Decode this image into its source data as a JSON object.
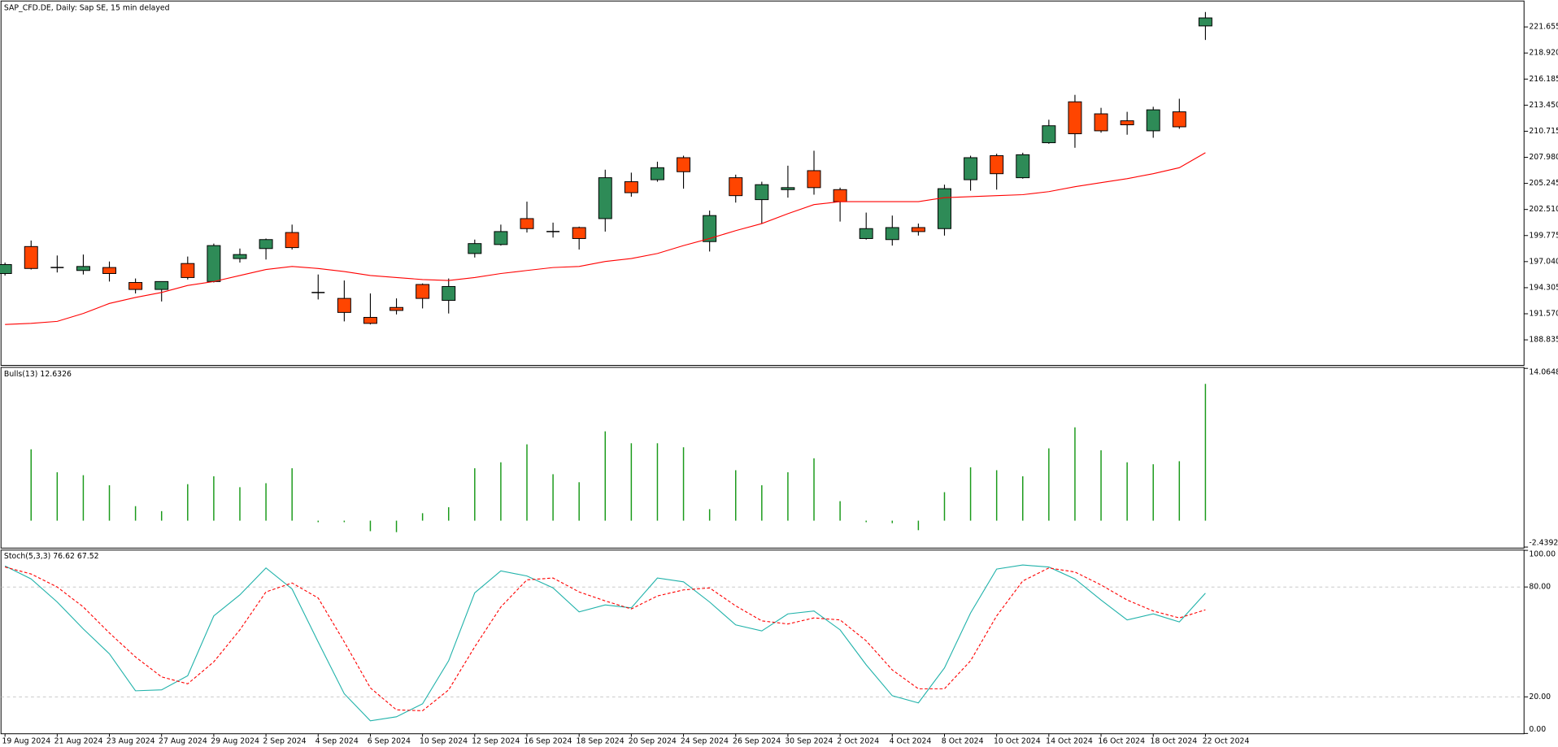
{
  "chart_data": [
    {
      "type": "candlestick",
      "title": "SAP_CFD.DE, Daily: Sap SE, 15 min delayed",
      "x": [
        "19 Aug 2024",
        null,
        "21 Aug 2024",
        null,
        "23 Aug 2024",
        null,
        "27 Aug 2024",
        null,
        "29 Aug 2024",
        null,
        "2 Sep 2024",
        null,
        "4 Sep 2024",
        null,
        "6 Sep 2024",
        null,
        "10 Sep 2024",
        null,
        "12 Sep 2024",
        null,
        "16 Sep 2024",
        null,
        "18 Sep 2024",
        null,
        "20 Sep 2024",
        null,
        "24 Sep 2024",
        null,
        "26 Sep 2024",
        null,
        "30 Sep 2024",
        null,
        "2 Oct 2024",
        null,
        "4 Oct 2024",
        null,
        "8 Oct 2024",
        null,
        "10 Oct 2024",
        null,
        "14 Oct 2024",
        null,
        "16 Oct 2024",
        null,
        "18 Oct 2024",
        null,
        "22 Oct 2024"
      ],
      "open": [
        195.79,
        198.62,
        196.42,
        196.11,
        196.42,
        194.85,
        194.12,
        196.84,
        194.95,
        197.36,
        198.41,
        200.09,
        193.8,
        193.18,
        191.19,
        192.23,
        194.64,
        192.97,
        197.89,
        198.83,
        201.55,
        200.19,
        200.61,
        201.55,
        205.42,
        205.63,
        207.94,
        199.14,
        205.84,
        203.54,
        204.59,
        206.58,
        204.59,
        199.46,
        199.35,
        200.61,
        200.5,
        205.63,
        208.15,
        205.84,
        209.51,
        213.8,
        212.54,
        211.81,
        210.76,
        212.75,
        221.76
      ],
      "high": [
        196.94,
        199.25,
        197.68,
        197.78,
        197.05,
        195.27,
        194.95,
        197.57,
        198.93,
        198.41,
        199.46,
        200.92,
        195.69,
        195.06,
        193.7,
        193.18,
        194.75,
        195.27,
        199.35,
        200.92,
        203.33,
        201.13,
        200.71,
        206.68,
        206.37,
        207.52,
        208.15,
        202.39,
        206.16,
        205.42,
        207.1,
        208.67,
        204.8,
        202.18,
        201.87,
        201.03,
        205.11,
        208.15,
        208.36,
        208.46,
        211.92,
        214.53,
        213.17,
        212.75,
        213.28,
        214.12,
        223.22
      ],
      "low": [
        195.58,
        196.21,
        195.9,
        195.69,
        194.95,
        193.7,
        192.86,
        195.16,
        194.85,
        196.94,
        197.26,
        198.31,
        193.07,
        190.77,
        190.45,
        191.5,
        192.13,
        191.6,
        197.47,
        198.72,
        200.09,
        199.56,
        198.31,
        200.19,
        203.85,
        205.42,
        204.69,
        198.1,
        203.23,
        201.03,
        203.75,
        204.06,
        201.24,
        199.35,
        198.72,
        199.77,
        199.77,
        204.48,
        204.59,
        205.74,
        209.4,
        208.98,
        210.56,
        210.35,
        210.03,
        210.97,
        220.29
      ],
      "close": [
        196.73,
        196.32,
        196.42,
        196.53,
        195.79,
        194.12,
        194.95,
        195.37,
        198.72,
        197.78,
        199.35,
        198.51,
        193.8,
        191.71,
        190.56,
        191.92,
        193.18,
        194.43,
        198.93,
        200.19,
        200.5,
        200.19,
        199.46,
        205.84,
        204.27,
        206.89,
        206.47,
        201.87,
        203.96,
        205.11,
        204.8,
        204.8,
        203.33,
        200.5,
        200.61,
        200.19,
        204.69,
        207.94,
        206.26,
        208.25,
        211.29,
        210.45,
        210.76,
        211.39,
        212.96,
        211.18,
        222.6
      ],
      "up_color": "#2e8b57",
      "down_color": "#ff4500",
      "doji_color": "#000000",
      "overlay": {
        "type": "line",
        "color": "#ff0000",
        "values": [
          190.45,
          190.56,
          190.77,
          191.6,
          192.65,
          193.28,
          193.8,
          194.54,
          194.95,
          195.58,
          196.21,
          196.53,
          196.32,
          196.0,
          195.58,
          195.37,
          195.16,
          195.06,
          195.37,
          195.79,
          196.11,
          196.42,
          196.53,
          197.05,
          197.36,
          197.89,
          198.72,
          199.46,
          200.29,
          201.03,
          202.07,
          203.02,
          203.33,
          203.33,
          203.33,
          203.33,
          203.75,
          203.85,
          203.96,
          204.06,
          204.38,
          204.9,
          205.32,
          205.74,
          206.26,
          206.89,
          208.46
        ]
      },
      "ylim": [
        186.26,
        224.27
      ],
      "yticks": [
        188.835,
        {
          "value": 191.57,
          "label": "191.570"
        },
        194.305,
        {
          "value": 197.04,
          "label": "197.040"
        },
        199.775,
        {
          "value": 202.51,
          "label": "202.510"
        },
        205.245,
        {
          "value": 207.98,
          "label": "207.980"
        },
        210.715,
        {
          "value": 213.45,
          "label": "213.450"
        },
        216.185,
        {
          "value": 218.92,
          "label": "218.920"
        },
        221.655
      ],
      "grid": false
    },
    {
      "type": "bar",
      "title": "Bulls(13) 12.6326",
      "color": "#1a9a1a",
      "values": [
        null,
        6.59,
        4.47,
        4.2,
        3.27,
        1.34,
        0.88,
        3.37,
        4.1,
        3.09,
        3.46,
        4.84,
        -0.14,
        -0.14,
        -0.97,
        -1.06,
        0.69,
        1.24,
        4.84,
        5.39,
        7.05,
        4.29,
        3.55,
        8.25,
        7.15,
        7.15,
        6.78,
        1.06,
        4.66,
        3.27,
        4.47,
        5.76,
        1.8,
        -0.14,
        -0.23,
        -0.88,
        2.63,
        4.93,
        4.66,
        4.1,
        6.68,
        8.62,
        6.5,
        5.39,
        5.21,
        5.49,
        12.6326
      ],
      "ylim": [
        -2.4392,
        14.0648
      ],
      "yticks": [
        -2.4392,
        14.0648
      ],
      "grid": false
    },
    {
      "type": "line",
      "title": "Stoch(5,3,3) 76.62 67.52",
      "series": [
        {
          "color": "#20b2aa",
          "style": "solid",
          "values": [
            91.5,
            84.4,
            71.8,
            57.1,
            43.5,
            23.3,
            23.8,
            31.5,
            64.2,
            75.7,
            90.4,
            78.9,
            50.0,
            21.7,
            6.9,
            9.1,
            16.2,
            39.7,
            76.8,
            88.8,
            86.0,
            79.5,
            66.4,
            70.2,
            68.6,
            84.9,
            82.8,
            71.8,
            59.3,
            56.0,
            65.3,
            66.9,
            56.6,
            37.5,
            20.6,
            16.7,
            35.8,
            65.8,
            89.8,
            92.0,
            90.9,
            84.4,
            72.9,
            62.0,
            65.3,
            60.9,
            76.62
          ]
        },
        {
          "color": "#ff0000",
          "style": "dash",
          "values": [
            90.9,
            87.1,
            80.0,
            69.1,
            54.9,
            41.8,
            30.9,
            27.1,
            39.1,
            56.6,
            77.3,
            82.2,
            74.0,
            50.0,
            24.9,
            12.9,
            12.4,
            23.8,
            47.3,
            69.1,
            83.9,
            84.9,
            77.3,
            72.4,
            68.0,
            75.1,
            78.4,
            79.5,
            69.7,
            61.5,
            59.8,
            63.1,
            62.0,
            50.6,
            34.7,
            24.4,
            24.4,
            39.7,
            64.2,
            83.3,
            90.4,
            88.2,
            81.1,
            72.9,
            66.9,
            63.1,
            67.52
          ]
        }
      ],
      "ylim": [
        0,
        100
      ],
      "yticks": [
        {
          "value": 0,
          "label": "0.00"
        },
        {
          "value": 20,
          "label": "20.00"
        },
        {
          "value": 80,
          "label": "80.00"
        },
        {
          "value": 100,
          "label": "100.00"
        }
      ],
      "grid": "dashed"
    }
  ]
}
